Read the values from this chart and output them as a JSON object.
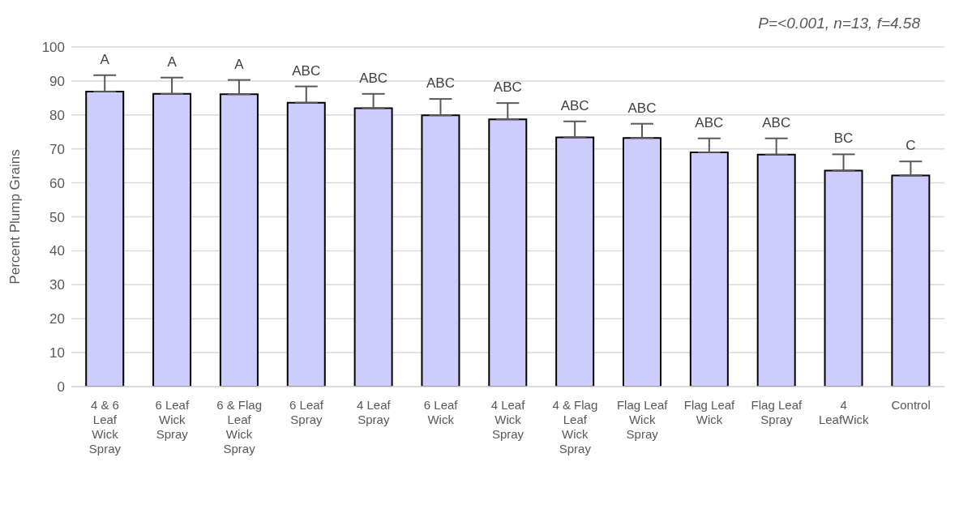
{
  "chart_data": {
    "type": "bar",
    "ylabel": "Percent Plump Grains",
    "annotations": [
      "P=<0.001, n=13, f=4.58"
    ],
    "categories": [
      "4 & 6 Leaf Wick Spray",
      "6 Leaf Wick Spray",
      "6 & Flag Leaf Wick Spray",
      "6 Leaf Spray",
      "4 Leaf Spray",
      "6 Leaf Wick",
      "4 Leaf Wick Spray",
      "4 & Flag Leaf Wick Spray",
      "Flag Leaf Wick Spray",
      "Flag Leaf Wick",
      "Flag Leaf Spray",
      "4 LeafWick",
      "Control"
    ],
    "values": [
      86.9,
      86.2,
      86.1,
      83.6,
      82.0,
      79.9,
      78.7,
      73.4,
      73.2,
      69.0,
      68.3,
      63.6,
      62.2
    ],
    "errors": [
      [
        86.9,
        91.7
      ],
      [
        86.2,
        91.0
      ],
      [
        86.1,
        90.3
      ],
      [
        83.6,
        88.4
      ],
      [
        82.0,
        86.2
      ],
      [
        79.9,
        84.7
      ],
      [
        78.7,
        83.5
      ],
      [
        73.4,
        78.1
      ],
      [
        73.2,
        77.4
      ],
      [
        69.0,
        73.1
      ],
      [
        68.3,
        73.1
      ],
      [
        63.6,
        68.4
      ],
      [
        62.2,
        66.3
      ]
    ],
    "value_labels": [
      "A",
      "A",
      "A",
      "ABC",
      "ABC",
      "ABC",
      "ABC",
      "ABC",
      "ABC",
      "ABC",
      "ABC",
      "BC",
      "C"
    ],
    "color": "#ccccff",
    "ylim": [
      0,
      100
    ],
    "yticks": [
      0,
      10,
      20,
      30,
      40,
      50,
      60,
      70,
      80,
      90,
      100
    ],
    "grid": "y"
  }
}
